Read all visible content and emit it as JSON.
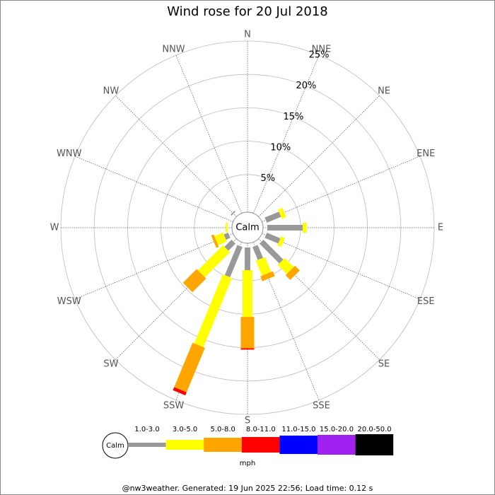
{
  "chart_data": {
    "type": "rose",
    "title": "Wind rose for 20 Jul 2018",
    "directions": [
      "N",
      "NNE",
      "NE",
      "ENE",
      "E",
      "ESE",
      "SE",
      "SSE",
      "S",
      "SSW",
      "SW",
      "WSW",
      "W",
      "WNW",
      "NW",
      "NNW"
    ],
    "rlim": [
      0,
      25
    ],
    "rticks": [
      {
        "value": 5,
        "label": "5%"
      },
      {
        "value": 10,
        "label": "10%"
      },
      {
        "value": 15,
        "label": "15%"
      },
      {
        "value": 20,
        "label": "20%"
      },
      {
        "value": 25,
        "label": "25%"
      }
    ],
    "calm_label": "Calm",
    "unit_label": "mph",
    "footer": "@nw3weather. Generated: 19 Jun 2025 22:56; Load time: 0.12 s",
    "series": [
      {
        "name": "1.0-3.0",
        "color": "#999999",
        "values": [
          0,
          0,
          0,
          2.3,
          5.3,
          2.2,
          4.2,
          2.1,
          3.4,
          4.9,
          1.5,
          0.7,
          0,
          0,
          0.2,
          0
        ]
      },
      {
        "name": "3.0-5.0",
        "color": "#ffff00",
        "values": [
          0,
          0,
          0,
          0.7,
          0.6,
          0.6,
          1.9,
          2.4,
          7.0,
          11.2,
          5.3,
          1.4,
          0.3,
          0,
          0,
          0
        ]
      },
      {
        "name": "5.0-8.0",
        "color": "#ffa500",
        "values": [
          0,
          0,
          0,
          0,
          0,
          0,
          1.0,
          0.8,
          4.7,
          7.2,
          2.9,
          0.4,
          0,
          0,
          0,
          0
        ]
      },
      {
        "name": "8.0-11.0",
        "color": "#ff0000",
        "values": [
          0,
          0,
          0,
          0,
          0,
          0,
          0,
          0,
          0.2,
          0.5,
          0,
          0,
          0,
          0,
          0,
          0
        ]
      },
      {
        "name": "11.0-15.0",
        "color": "#0000ff",
        "values": [
          0,
          0,
          0,
          0,
          0,
          0,
          0,
          0,
          0,
          0,
          0,
          0,
          0,
          0,
          0,
          0
        ]
      },
      {
        "name": "15.0-20.0",
        "color": "#a020f0",
        "values": [
          0,
          0,
          0,
          0,
          0,
          0,
          0,
          0,
          0,
          0,
          0,
          0,
          0,
          0,
          0,
          0
        ]
      },
      {
        "name": "20.0-50.0",
        "color": "#000000",
        "values": [
          0,
          0,
          0,
          0,
          0,
          0,
          0,
          0,
          0,
          0,
          0,
          0,
          0,
          0,
          0,
          0
        ]
      }
    ]
  }
}
